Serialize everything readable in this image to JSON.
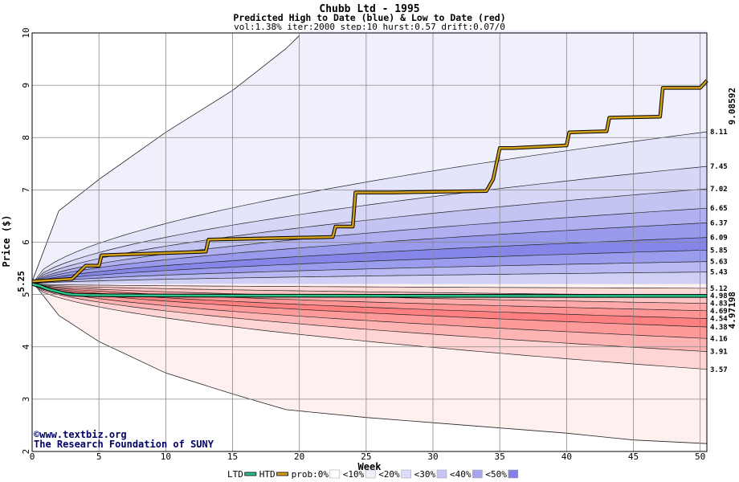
{
  "chart_data": {
    "type": "area",
    "title": "Chubb Ltd - 1995",
    "subtitle": "Predicted High to Date (blue) &  Low to Date (red)",
    "params": "vol:1.38% iter:2000 step:10 hurst:0.57 drift:0.07/0",
    "xlabel": "Week",
    "ylabel": "Price ($)",
    "xlim": [
      0,
      50.5
    ],
    "ylim": [
      2,
      10
    ],
    "x_ticks": [
      0,
      5,
      10,
      15,
      20,
      25,
      30,
      35,
      40,
      45,
      50
    ],
    "y_ticks": [
      2,
      3,
      4,
      5,
      6,
      7,
      8,
      9,
      10
    ],
    "grid": true,
    "start_price": "5.25",
    "start_value": 5.2,
    "high_to_date_final": "9.08592",
    "low_to_date_final": "4.97198",
    "high_percentile_ends": [
      {
        "label": "8.11",
        "value": 8.11
      },
      {
        "label": "7.45",
        "value": 7.45
      },
      {
        "label": "7.02",
        "value": 7.02
      },
      {
        "label": "6.65",
        "value": 6.65
      },
      {
        "label": "6.37",
        "value": 6.37
      },
      {
        "label": "6.09",
        "value": 6.09
      },
      {
        "label": "5.85",
        "value": 5.85
      },
      {
        "label": "5.63",
        "value": 5.63
      },
      {
        "label": "5.43",
        "value": 5.43
      }
    ],
    "low_percentile_ends": [
      {
        "label": "5.12",
        "value": 5.12
      },
      {
        "label": "4.98",
        "value": 4.98
      },
      {
        "label": "4.83",
        "value": 4.83
      },
      {
        "label": "4.69",
        "value": 4.69
      },
      {
        "label": "4.54",
        "value": 4.54
      },
      {
        "label": "4.38",
        "value": 4.38
      },
      {
        "label": "4.16",
        "value": 4.16
      },
      {
        "label": "3.91",
        "value": 3.91
      },
      {
        "label": "3.57",
        "value": 3.57
      }
    ],
    "series": [
      {
        "name": "HTD",
        "color": "#d4a017",
        "x": [
          0,
          3,
          4,
          5,
          5.2,
          13,
          13.2,
          22.5,
          22.7,
          24,
          24.2,
          27,
          34,
          34.5,
          35,
          36,
          40,
          40.2,
          43,
          43.2,
          47,
          47.2,
          50,
          50.5
        ],
        "y": [
          5.25,
          5.3,
          5.55,
          5.55,
          5.75,
          5.82,
          6.05,
          6.1,
          6.3,
          6.3,
          6.95,
          6.95,
          6.98,
          7.2,
          7.8,
          7.8,
          7.85,
          8.1,
          8.12,
          8.38,
          8.4,
          8.95,
          8.95,
          9.09
        ]
      },
      {
        "name": "LTD",
        "color": "#2bc48a",
        "x": [
          0,
          0.5,
          1,
          1.5,
          2,
          2.5,
          3,
          4,
          6,
          10,
          20,
          30,
          40,
          50.5
        ],
        "y": [
          5.2,
          5.17,
          5.12,
          5.08,
          5.05,
          5.02,
          5.0,
          4.99,
          4.985,
          4.98,
          4.977,
          4.975,
          4.973,
          4.972
        ]
      }
    ],
    "upper_envelope": {
      "x": [
        0,
        2,
        5,
        10,
        15,
        17,
        18,
        19,
        20
      ],
      "y": [
        5.25,
        6.6,
        7.2,
        8.1,
        8.9,
        9.3,
        9.5,
        9.7,
        9.95
      ]
    },
    "lower_envelope": {
      "x": [
        0,
        2,
        5,
        10,
        15,
        19,
        25,
        30,
        35,
        40,
        45,
        50.5
      ],
      "y": [
        5.25,
        4.6,
        4.1,
        3.5,
        3.1,
        2.8,
        2.65,
        2.55,
        2.45,
        2.35,
        2.22,
        2.15
      ]
    },
    "legend": {
      "position": "bottom",
      "items": [
        {
          "label": "LTD",
          "color": "#2bc48a",
          "kind": "line"
        },
        {
          "label": "HTD",
          "color": "#d4a017",
          "kind": "line"
        },
        {
          "label": "prob:0%",
          "color": "#ffffff",
          "kind": "swatch"
        },
        {
          "label": "<10%",
          "color": "#f0f0fc",
          "kind": "swatch"
        },
        {
          "label": "<20%",
          "color": "#dcdcf8",
          "kind": "swatch"
        },
        {
          "label": "<30%",
          "color": "#c6c6f4",
          "kind": "swatch"
        },
        {
          "label": "<40%",
          "color": "#a6a6ee",
          "kind": "swatch"
        },
        {
          "label": "<50%",
          "color": "#8080e8",
          "kind": "swatch"
        }
      ]
    },
    "credit_lines": [
      "©www.textbiz.org",
      "The Research Foundation of SUNY"
    ]
  },
  "colors": {
    "blue_bands": [
      "#f0f0fc",
      "#e4e4fa",
      "#d6d6f7",
      "#c4c4f3",
      "#b0b0f0",
      "#9a9aec",
      "#8686e8",
      "#9c9cee",
      "#b8b8f2",
      "#d0d0f6"
    ],
    "red_bands": [
      "#fff0f0",
      "#ffd8d8",
      "#ffc4c4",
      "#ffaaaa",
      "#ff9494",
      "#ff8080",
      "#ff9a9a",
      "#ffb4b4",
      "#ffd4d4",
      "#fff0f0"
    ],
    "grid": "#888888",
    "background": "#ffffff"
  }
}
